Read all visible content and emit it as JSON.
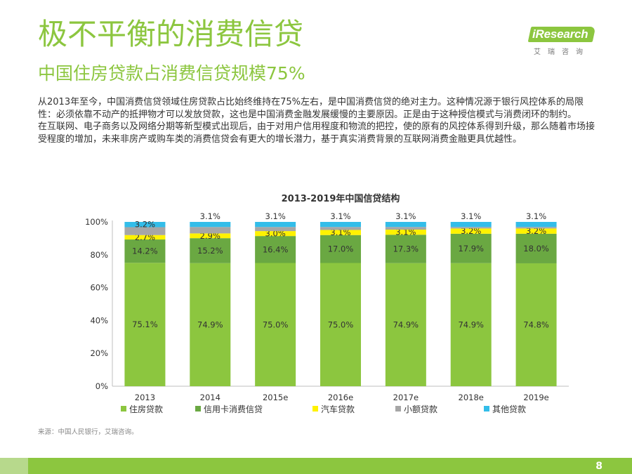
{
  "header": {
    "title": "极不平衡的消费信贷",
    "subtitle": "中国住房贷款占消费信贷规模75%"
  },
  "logo": {
    "brand": "iResearch",
    "sub": "艾瑞咨询",
    "brand_color": "#8cc63f"
  },
  "body": {
    "paragraph1": "从2013年至今，中国消费信贷领域住房贷款占比始终维持在75%左右，是中国消费信贷的绝对主力。这种情况源于银行风控体系的局限性：必须依靠不动产的抵押物才可以发放贷款，这也是中国消费金融发展缓慢的主要原因。正是由于这种授信模式与消费闭环的制约。",
    "paragraph2": "在互联网、电子商务以及网络分期等新型模式出现后，由于对用户信用程度和物流的把控，使的原有的风控体系得到升级，那么随着市场接受程度的增加，未来非房产或购车类的消费信贷会有更大的增长潜力，基于真实消费背景的互联网消费金融更具优越性。"
  },
  "chart_data": {
    "type": "bar",
    "stacked": true,
    "title": "2013-2019年中国信贷结构",
    "categories": [
      "2013",
      "2014",
      "2015e",
      "2016e",
      "2017e",
      "2018e",
      "2019e"
    ],
    "ylim": [
      0,
      100
    ],
    "yticks": [
      "0%",
      "20%",
      "40%",
      "60%",
      "80%",
      "100%"
    ],
    "grid": false,
    "legend_position": "bottom",
    "series": [
      {
        "name": "住房贷款",
        "color": "#8cc63f",
        "values": [
          75.1,
          74.9,
          75.0,
          75.0,
          74.9,
          74.9,
          74.8
        ],
        "labels": [
          "75.1%",
          "74.9%",
          "75.0%",
          "75.0%",
          "74.9%",
          "74.9%",
          "74.8%"
        ]
      },
      {
        "name": "信用卡消费信贷",
        "color": "#6aa842",
        "values": [
          14.2,
          15.2,
          16.4,
          17.0,
          17.3,
          17.9,
          18.0
        ],
        "labels": [
          "14.2%",
          "15.2%",
          "16.4%",
          "17.0%",
          "17.3%",
          "17.9%",
          "18.0%"
        ]
      },
      {
        "name": "汽车贷款",
        "color": "#fff200",
        "values": [
          2.7,
          2.9,
          3.0,
          3.1,
          3.1,
          3.2,
          3.2
        ],
        "labels": [
          "2.7%",
          "2.9%",
          "3.0%",
          "3.1%",
          "3.1%",
          "3.2%",
          "3.2%"
        ]
      },
      {
        "name": "小额贷款",
        "color": "#a6a6a6",
        "values": [
          4.8,
          3.9,
          2.5,
          1.8,
          1.6,
          0.9,
          0.9
        ]
      },
      {
        "name": "其他贷款",
        "color": "#33bde9",
        "values": [
          3.2,
          3.1,
          3.1,
          3.1,
          3.1,
          3.1,
          3.1
        ],
        "labels": [
          "3.2%",
          "3.1%",
          "3.1%",
          "3.1%",
          "3.1%",
          "3.1%",
          "3.1%"
        ]
      }
    ]
  },
  "source": "来源：中国人民银行，艾瑞咨询。",
  "page_number": "8"
}
